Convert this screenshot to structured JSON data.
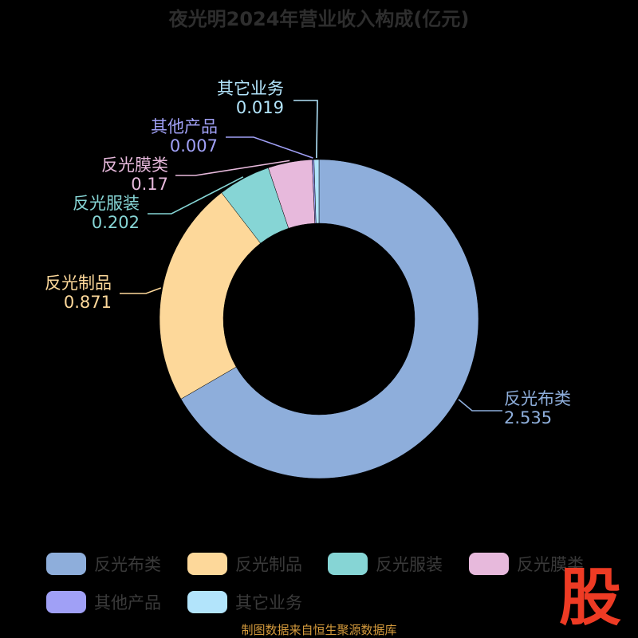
{
  "chart_data": {
    "type": "pie",
    "variant": "donut",
    "title": "夜光明2024年营业收入构成(亿元)",
    "categories": [
      "反光布类",
      "反光制品",
      "反光服装",
      "反光膜类",
      "其他产品",
      "其它业务"
    ],
    "values": [
      2.535,
      0.871,
      0.202,
      0.17,
      0.007,
      0.019
    ],
    "value_labels": [
      "2.535",
      "0.871",
      "0.202",
      "0.17",
      "0.007",
      "0.019"
    ],
    "colors": [
      "#8eaedb",
      "#fdd89a",
      "#86d5d5",
      "#e7b9dc",
      "#a0a0f6",
      "#b2e4fb"
    ],
    "legend_position": "bottom",
    "grid": false
  },
  "footer": {
    "source": "制图数据来自恒生聚源数据库",
    "watermark": "股"
  },
  "colors": {
    "background": "#000000",
    "title": "#2e2e2e",
    "legend_text": "#3a3a3a",
    "source": "#d49a3c",
    "watermark": "#ee3b24"
  }
}
